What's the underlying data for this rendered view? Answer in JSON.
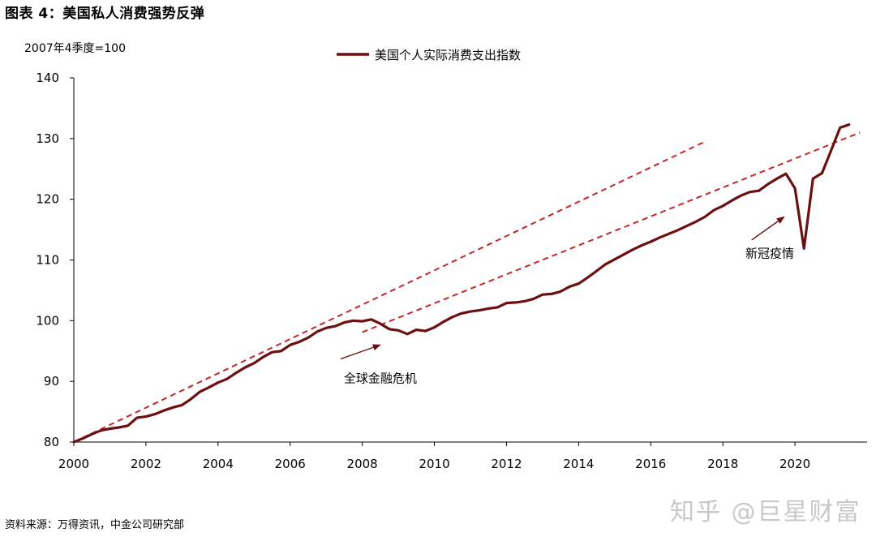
{
  "figure": {
    "title": "图表 4：美国私人消费强势反弹",
    "source": "资料来源：万得资讯，中金公司研究部",
    "watermark": "知乎 @巨星财富"
  },
  "colors": {
    "series": "#6b0f0f",
    "trend": "#c0282a",
    "arrow": "#6b0f0f",
    "axis": "#000000"
  },
  "chart_data": {
    "type": "line",
    "ylabel": "2007年4季度=100",
    "xlim": [
      2000,
      2021.8
    ],
    "ylim": [
      80,
      140
    ],
    "xticks": [
      "2000",
      "2002",
      "2004",
      "2006",
      "2008",
      "2010",
      "2012",
      "2014",
      "2016",
      "2018",
      "2020"
    ],
    "yticks": [
      "80",
      "90",
      "100",
      "110",
      "120",
      "130",
      "140"
    ],
    "legend": {
      "position": "top-center",
      "entries": [
        "美国个人实际消费支出指数"
      ]
    },
    "series": [
      {
        "name": "美国个人实际消费支出指数",
        "x": [
          2000.0,
          2000.25,
          2000.5,
          2000.75,
          2001.0,
          2001.25,
          2001.5,
          2001.75,
          2002.0,
          2002.25,
          2002.5,
          2002.75,
          2003.0,
          2003.25,
          2003.5,
          2003.75,
          2004.0,
          2004.25,
          2004.5,
          2004.75,
          2005.0,
          2005.25,
          2005.5,
          2005.75,
          2006.0,
          2006.25,
          2006.5,
          2006.75,
          2007.0,
          2007.25,
          2007.5,
          2007.75,
          2008.0,
          2008.25,
          2008.5,
          2008.75,
          2009.0,
          2009.25,
          2009.5,
          2009.75,
          2010.0,
          2010.25,
          2010.5,
          2010.75,
          2011.0,
          2011.25,
          2011.5,
          2011.75,
          2012.0,
          2012.25,
          2012.5,
          2012.75,
          2013.0,
          2013.25,
          2013.5,
          2013.75,
          2014.0,
          2014.25,
          2014.5,
          2014.75,
          2015.0,
          2015.25,
          2015.5,
          2015.75,
          2016.0,
          2016.25,
          2016.5,
          2016.75,
          2017.0,
          2017.25,
          2017.5,
          2017.75,
          2018.0,
          2018.25,
          2018.5,
          2018.75,
          2019.0,
          2019.25,
          2019.5,
          2019.75,
          2020.0,
          2020.25,
          2020.5,
          2020.75,
          2021.0,
          2021.25,
          2021.5
        ],
        "values": [
          80.0,
          80.6,
          81.3,
          81.9,
          82.2,
          82.4,
          82.7,
          84.0,
          84.2,
          84.6,
          85.2,
          85.7,
          86.1,
          87.1,
          88.3,
          89.0,
          89.8,
          90.4,
          91.4,
          92.3,
          93.0,
          94.0,
          94.8,
          95.0,
          96.0,
          96.5,
          97.2,
          98.2,
          98.8,
          99.1,
          99.7,
          100.0,
          99.9,
          100.2,
          99.5,
          98.6,
          98.4,
          97.8,
          98.5,
          98.3,
          98.9,
          99.8,
          100.6,
          101.2,
          101.5,
          101.7,
          102.0,
          102.2,
          102.9,
          103.0,
          103.2,
          103.6,
          104.3,
          104.4,
          104.8,
          105.6,
          106.1,
          107.1,
          108.2,
          109.3,
          110.1,
          110.9,
          111.7,
          112.4,
          113.0,
          113.7,
          114.3,
          114.9,
          115.6,
          116.3,
          117.1,
          118.2,
          118.9,
          119.8,
          120.6,
          121.2,
          121.4,
          122.5,
          123.4,
          124.2,
          121.8,
          111.9,
          123.4,
          124.3,
          128.0,
          131.8,
          132.3
        ]
      },
      {
        "name": "",
        "style": "dashed",
        "x": [
          2000.0,
          2017.5
        ],
        "values": [
          80.0,
          129.5
        ]
      },
      {
        "name": "",
        "style": "dashed",
        "x": [
          2008.0,
          2021.8
        ],
        "values": [
          98.1,
          131.0
        ]
      }
    ],
    "annotations": [
      {
        "text": "全球金融危机",
        "x": 2008.5,
        "y": 89.8,
        "arrow_from": [
          2007.4,
          93.7
        ],
        "arrow_to": [
          2008.5,
          96.0
        ]
      },
      {
        "text": "新冠疫情",
        "x": 2019.3,
        "y": 110.4,
        "arrow_from": [
          2018.8,
          113.3
        ],
        "arrow_to": [
          2019.7,
          117.1
        ]
      }
    ]
  }
}
